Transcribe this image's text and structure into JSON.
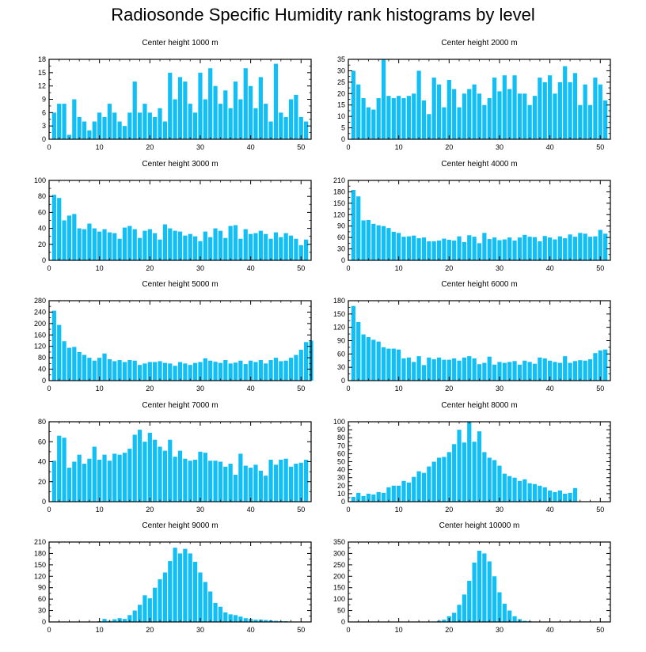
{
  "title": "Radiosonde Specific Humidity rank histograms by level",
  "colors": {
    "bar": "#10bff5",
    "axis": "#000000"
  },
  "chart_data": [
    {
      "type": "bar",
      "title": "Center height 1000 m",
      "xlim": [
        0,
        52
      ],
      "ylim": [
        0,
        18
      ],
      "xticks": [
        0,
        10,
        20,
        30,
        40,
        50
      ],
      "yticks": [
        0,
        3,
        6,
        9,
        12,
        15,
        18
      ],
      "values": [
        6,
        8,
        8,
        1,
        9,
        5,
        4,
        2,
        4,
        6,
        5,
        8,
        6,
        4,
        3,
        6,
        13,
        6,
        8,
        6,
        5,
        7,
        4,
        15,
        9,
        14,
        13,
        8,
        6,
        15,
        9,
        16,
        12,
        8,
        11,
        7,
        13,
        9,
        16,
        12,
        7,
        14,
        8,
        4,
        17,
        6,
        5,
        9,
        10,
        5,
        4
      ]
    },
    {
      "type": "bar",
      "title": "Center height 2000 m",
      "xlim": [
        0,
        52
      ],
      "ylim": [
        0,
        35
      ],
      "xticks": [
        0,
        10,
        20,
        30,
        40,
        50
      ],
      "yticks": [
        0,
        5,
        10,
        15,
        20,
        25,
        30,
        35
      ],
      "values": [
        30,
        24,
        18,
        14,
        13,
        18,
        35,
        19,
        18,
        19,
        18,
        19,
        20,
        30,
        17,
        11,
        27,
        24,
        14,
        26,
        22,
        14,
        20,
        22,
        24,
        20,
        15,
        18,
        27,
        21,
        28,
        22,
        28,
        20,
        20,
        15,
        19,
        27,
        25,
        28,
        20,
        25,
        32,
        25,
        29,
        15,
        24,
        15,
        27,
        24,
        17
      ]
    },
    {
      "type": "bar",
      "title": "Center height 3000 m",
      "xlim": [
        0,
        52
      ],
      "ylim": [
        0,
        100
      ],
      "xticks": [
        0,
        10,
        20,
        30,
        40,
        50
      ],
      "yticks": [
        0,
        20,
        40,
        60,
        80,
        100
      ],
      "values": [
        82,
        78,
        50,
        56,
        58,
        40,
        39,
        46,
        40,
        36,
        39,
        35,
        34,
        27,
        41,
        43,
        39,
        28,
        37,
        39,
        34,
        26,
        45,
        40,
        37,
        36,
        31,
        33,
        30,
        24,
        36,
        29,
        40,
        37,
        28,
        43,
        44,
        27,
        39,
        33,
        34,
        37,
        33,
        27,
        35,
        29,
        34,
        31,
        27,
        19,
        26
      ]
    },
    {
      "type": "bar",
      "title": "Center height 4000 m",
      "xlim": [
        0,
        52
      ],
      "ylim": [
        0,
        210
      ],
      "xticks": [
        0,
        10,
        20,
        30,
        40,
        50
      ],
      "yticks": [
        0,
        30,
        60,
        90,
        120,
        150,
        180,
        210
      ],
      "values": [
        185,
        168,
        105,
        106,
        96,
        92,
        90,
        85,
        75,
        72,
        62,
        63,
        65,
        58,
        60,
        50,
        50,
        52,
        57,
        54,
        52,
        63,
        48,
        66,
        62,
        45,
        72,
        56,
        60,
        53,
        55,
        60,
        52,
        60,
        67,
        62,
        61,
        50,
        64,
        60,
        55,
        63,
        58,
        68,
        62,
        72,
        70,
        62,
        63,
        80,
        70
      ]
    },
    {
      "type": "bar",
      "title": "Center height 5000 m",
      "xlim": [
        0,
        52
      ],
      "ylim": [
        0,
        280
      ],
      "xticks": [
        0,
        10,
        20,
        30,
        40,
        50
      ],
      "yticks": [
        0,
        40,
        80,
        120,
        160,
        200,
        240,
        280
      ],
      "values": [
        245,
        195,
        138,
        115,
        118,
        100,
        90,
        80,
        70,
        80,
        95,
        75,
        68,
        72,
        65,
        72,
        70,
        55,
        60,
        65,
        65,
        68,
        62,
        60,
        52,
        65,
        60,
        55,
        62,
        65,
        78,
        70,
        66,
        62,
        72,
        60,
        63,
        70,
        58,
        70,
        65,
        72,
        60,
        72,
        80,
        68,
        70,
        80,
        90,
        108,
        135,
        140
      ]
    },
    {
      "type": "bar",
      "title": "Center height 6000 m",
      "xlim": [
        0,
        52
      ],
      "ylim": [
        0,
        180
      ],
      "xticks": [
        0,
        10,
        20,
        30,
        40,
        50
      ],
      "yticks": [
        0,
        30,
        60,
        90,
        120,
        150,
        180
      ],
      "values": [
        168,
        132,
        104,
        98,
        92,
        88,
        75,
        72,
        72,
        70,
        50,
        52,
        42,
        55,
        35,
        52,
        48,
        52,
        47,
        47,
        50,
        45,
        52,
        55,
        50,
        37,
        40,
        54,
        36,
        42,
        40,
        42,
        44,
        36,
        45,
        42,
        38,
        52,
        50,
        45,
        42,
        40,
        55,
        40,
        44,
        46,
        45,
        48,
        62,
        68,
        70
      ]
    },
    {
      "type": "bar",
      "title": "Center height 7000 m",
      "xlim": [
        0,
        52
      ],
      "ylim": [
        0,
        80
      ],
      "xticks": [
        0,
        10,
        20,
        30,
        40,
        50
      ],
      "yticks": [
        0,
        20,
        40,
        60,
        80
      ],
      "values": [
        41,
        66,
        64,
        34,
        40,
        47,
        38,
        43,
        55,
        42,
        47,
        41,
        48,
        47,
        49,
        53,
        67,
        72,
        60,
        69,
        62,
        55,
        51,
        62,
        45,
        51,
        43,
        41,
        42,
        50,
        49,
        41,
        41,
        40,
        35,
        38,
        27,
        48,
        36,
        34,
        37,
        31,
        26,
        42,
        37,
        42,
        43,
        35,
        38,
        39,
        42
      ]
    },
    {
      "type": "bar",
      "title": "Center height 8000 m",
      "xlim": [
        0,
        52
      ],
      "ylim": [
        0,
        100
      ],
      "xticks": [
        0,
        10,
        20,
        30,
        40,
        50
      ],
      "yticks": [
        0,
        10,
        20,
        30,
        40,
        50,
        60,
        70,
        80,
        90,
        100
      ],
      "values": [
        6,
        11,
        7,
        10,
        9,
        12,
        11,
        18,
        20,
        20,
        26,
        24,
        31,
        38,
        36,
        44,
        50,
        55,
        56,
        62,
        72,
        90,
        74,
        100,
        75,
        88,
        62,
        55,
        52,
        45,
        35,
        32,
        30,
        26,
        28,
        23,
        22,
        20,
        18,
        14,
        12,
        14,
        10,
        11,
        17
      ]
    },
    {
      "type": "bar",
      "title": "Center height 9000 m",
      "xlim": [
        0,
        52
      ],
      "ylim": [
        0,
        210
      ],
      "xticks": [
        0,
        10,
        20,
        30,
        40,
        50
      ],
      "yticks": [
        0,
        30,
        60,
        90,
        120,
        150,
        180,
        210
      ],
      "values": [
        0,
        0,
        0,
        0,
        0,
        0,
        0,
        0,
        1,
        2,
        8,
        3,
        7,
        10,
        8,
        18,
        30,
        45,
        70,
        62,
        90,
        112,
        130,
        160,
        195,
        180,
        192,
        180,
        158,
        130,
        105,
        80,
        50,
        40,
        25,
        20,
        18,
        14,
        10,
        8,
        6,
        6,
        5,
        4,
        3,
        2,
        2,
        1,
        1,
        1,
        0
      ]
    },
    {
      "type": "bar",
      "title": "Center height 10000 m",
      "xlim": [
        0,
        52
      ],
      "ylim": [
        0,
        350
      ],
      "xticks": [
        0,
        10,
        20,
        30,
        40,
        50
      ],
      "yticks": [
        0,
        50,
        100,
        150,
        200,
        250,
        300,
        350
      ],
      "values": [
        0,
        0,
        0,
        0,
        0,
        0,
        0,
        0,
        0,
        0,
        0,
        0,
        0,
        0,
        0,
        0,
        2,
        5,
        10,
        25,
        40,
        75,
        120,
        180,
        260,
        312,
        300,
        265,
        200,
        130,
        80,
        50,
        25,
        12,
        5,
        3,
        2,
        1,
        0,
        0,
        0,
        0,
        0,
        0,
        0,
        0,
        0,
        0,
        0,
        0,
        0
      ]
    }
  ]
}
